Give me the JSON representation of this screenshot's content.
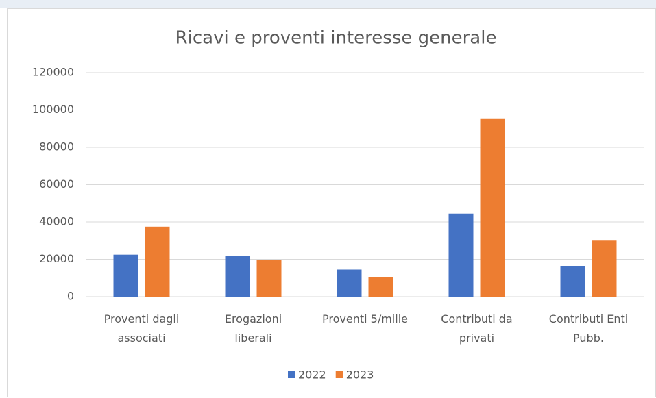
{
  "chart_data": {
    "type": "bar",
    "title": "Ricavi e proventi interesse generale",
    "categories": [
      "Proventi dagli associati",
      "Erogazioni liberali",
      "Proventi 5/mille",
      "Contributi da privati",
      "Contributi Enti Pubb."
    ],
    "series": [
      {
        "name": "2022",
        "color": "#4472c4",
        "values": [
          22500,
          22000,
          14500,
          44500,
          16500
        ]
      },
      {
        "name": "2023",
        "color": "#ed7d31",
        "values": [
          37500,
          19500,
          10500,
          95500,
          30000
        ]
      }
    ],
    "ylim": [
      0,
      120000
    ],
    "yticks": [
      0,
      20000,
      40000,
      60000,
      80000,
      100000,
      120000
    ],
    "grid": true,
    "legend": "bottom"
  }
}
